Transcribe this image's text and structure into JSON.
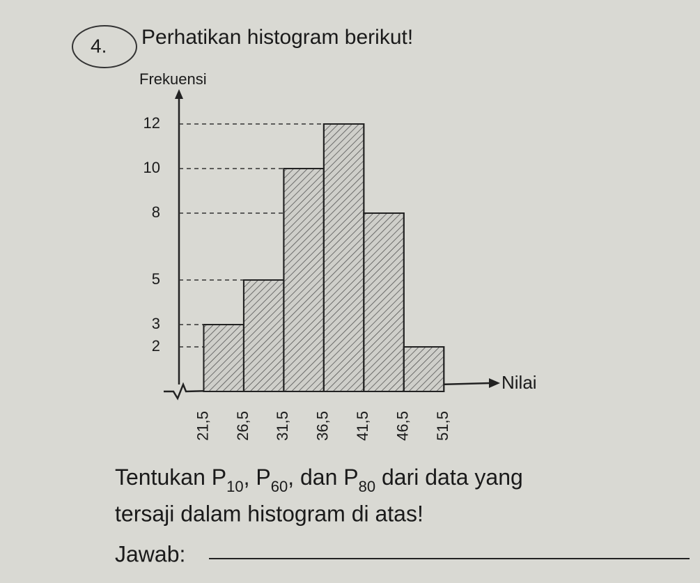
{
  "question_number": "4.",
  "heading": "Perhatikan histogram berikut!",
  "question": {
    "line1": [
      "Tentukan P",
      "10",
      ", P",
      "60",
      ", dan P",
      "80",
      " dari data yang"
    ],
    "line2": "tersaji dalam histogram di atas!"
  },
  "answer_label": "Jawab:",
  "chart_data": {
    "type": "histogram",
    "y_label": "Frekuensi",
    "x_label": "Nilai",
    "bins": [
      {
        "value": 21.5,
        "label": "21,5"
      },
      {
        "value": 26.5,
        "label": "26,5"
      },
      {
        "value": 31.5,
        "label": "31,5"
      },
      {
        "value": 36.5,
        "label": "36,5"
      },
      {
        "value": 41.5,
        "label": "41,5"
      },
      {
        "value": 46.5,
        "label": "46,5"
      },
      {
        "value": 51.5,
        "label": "51,5"
      }
    ],
    "values": [
      3,
      5,
      10,
      12,
      8,
      2
    ],
    "color": "#cfcfca",
    "xlim": [
      16.5,
      58
    ],
    "ylim": [
      0,
      13
    ],
    "yticks": [
      2,
      3,
      5,
      8,
      10,
      12
    ]
  }
}
